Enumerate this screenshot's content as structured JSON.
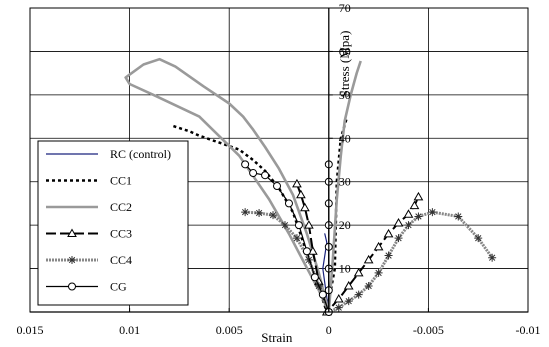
{
  "chart_data": {
    "type": "line",
    "title": "",
    "xlabel": "Strain",
    "ylabel": "Stress (Mpa)",
    "xlim": [
      0.015,
      -0.01
    ],
    "ylim": [
      0,
      70
    ],
    "x_ticks": [
      "0.015",
      "0.01",
      "0.005",
      "0",
      "-0.005",
      "-0.01"
    ],
    "y_ticks": [
      "0",
      "10",
      "20",
      "30",
      "40",
      "50",
      "60",
      "70"
    ],
    "grid": true,
    "legend_position": "left",
    "series": [
      {
        "name": "RC (control)",
        "color": "#1a237e",
        "marker": "none",
        "dash": "solid",
        "width": 1.2,
        "points": [
          [
            0.0,
            0
          ],
          [
            0.0003,
            10
          ],
          [
            0.0001,
            16
          ],
          [
            0.0002,
            18
          ],
          [
            0.0,
            14
          ],
          [
            0.0,
            0
          ]
        ]
      },
      {
        "name": "CC1",
        "color": "#000000",
        "marker": "none",
        "dash": "dotted",
        "width": 2.5,
        "points": [
          [
            0.0078,
            42.8
          ],
          [
            0.007,
            41.6
          ],
          [
            0.0065,
            40.6
          ],
          [
            0.0055,
            39.0
          ],
          [
            0.0045,
            37.4
          ],
          [
            0.0038,
            35.0
          ],
          [
            0.0032,
            32.5
          ],
          [
            0.0025,
            28.5
          ],
          [
            0.0018,
            23.0
          ],
          [
            0.0012,
            15.0
          ],
          [
            0.0006,
            7.0
          ],
          [
            0.0001,
            0
          ],
          [
            -0.0003,
            10
          ],
          [
            -0.0004,
            30
          ],
          [
            -0.0006,
            40
          ],
          [
            -0.0009,
            44.6
          ]
        ]
      },
      {
        "name": "CC2",
        "color": "#9a9a9a",
        "marker": "none",
        "dash": "solid",
        "width": 2.6,
        "points": [
          [
            0.0,
            0
          ],
          [
            0.0005,
            5
          ],
          [
            0.0012,
            11
          ],
          [
            0.002,
            18
          ],
          [
            0.003,
            26
          ],
          [
            0.0045,
            36
          ],
          [
            0.0065,
            45
          ],
          [
            0.0088,
            50
          ],
          [
            0.01,
            52.5
          ],
          [
            0.0102,
            54
          ],
          [
            0.0093,
            57
          ],
          [
            0.0085,
            58.2
          ],
          [
            0.0077,
            56.5
          ],
          [
            0.0063,
            52
          ],
          [
            0.005,
            48
          ],
          [
            0.0043,
            45
          ],
          [
            0.0038,
            42
          ],
          [
            0.0032,
            38
          ],
          [
            0.0025,
            33
          ],
          [
            0.0018,
            27
          ],
          [
            0.0011,
            18
          ],
          [
            0.0005,
            9
          ],
          [
            0.0,
            0
          ],
          [
            -0.0002,
            12
          ],
          [
            -0.0004,
            26
          ],
          [
            -0.0006,
            36
          ],
          [
            -0.0008,
            44
          ],
          [
            -0.0011,
            50
          ],
          [
            -0.0014,
            55
          ],
          [
            -0.0016,
            57.8
          ]
        ]
      },
      {
        "name": "CC3",
        "color": "#000000",
        "marker": "triangle",
        "dash": "longdash",
        "width": 2.0,
        "points": [
          [
            0.0016,
            29.5
          ],
          [
            0.0014,
            27
          ],
          [
            0.0012,
            24
          ],
          [
            0.001,
            20
          ],
          [
            0.0008,
            14
          ],
          [
            0.0005,
            7
          ],
          [
            0.0001,
            0
          ],
          [
            -0.0005,
            3
          ],
          [
            -0.001,
            6
          ],
          [
            -0.0015,
            9
          ],
          [
            -0.002,
            12
          ],
          [
            -0.0025,
            15
          ],
          [
            -0.003,
            18
          ],
          [
            -0.0035,
            20.5
          ],
          [
            -0.004,
            22.5
          ],
          [
            -0.0043,
            24.5
          ],
          [
            -0.0045,
            26.5
          ]
        ]
      },
      {
        "name": "CC4",
        "color": "#888888",
        "marker": "star",
        "dash": "dotted-thick",
        "width": 3.0,
        "points": [
          [
            0.0042,
            23
          ],
          [
            0.0035,
            22.8
          ],
          [
            0.0028,
            22.3
          ],
          [
            0.0022,
            20
          ],
          [
            0.0016,
            17
          ],
          [
            0.001,
            12
          ],
          [
            0.0005,
            6
          ],
          [
            0.0,
            0
          ],
          [
            -0.0005,
            1
          ],
          [
            -0.001,
            2.5
          ],
          [
            -0.0015,
            4
          ],
          [
            -0.002,
            6
          ],
          [
            -0.0025,
            9
          ],
          [
            -0.003,
            13
          ],
          [
            -0.0035,
            17
          ],
          [
            -0.004,
            20
          ],
          [
            -0.0045,
            22
          ],
          [
            -0.0052,
            23
          ],
          [
            -0.0065,
            22
          ],
          [
            -0.0075,
            17
          ],
          [
            -0.0082,
            12.5
          ]
        ]
      },
      {
        "name": "CG",
        "color": "#000000",
        "marker": "circle",
        "dash": "solid",
        "width": 1.2,
        "points": [
          [
            0.0042,
            34
          ],
          [
            0.0038,
            32
          ],
          [
            0.0032,
            31.5
          ],
          [
            0.0026,
            29
          ],
          [
            0.002,
            25
          ],
          [
            0.0015,
            20
          ],
          [
            0.0011,
            14
          ],
          [
            0.0007,
            8
          ],
          [
            0.0003,
            4
          ],
          [
            0.0,
            0
          ],
          [
            0.0,
            5
          ],
          [
            0.0,
            10
          ],
          [
            0.0,
            15
          ],
          [
            0.0,
            20
          ],
          [
            0.0,
            25
          ],
          [
            0.0,
            30
          ],
          [
            0.0,
            34
          ]
        ]
      }
    ]
  }
}
